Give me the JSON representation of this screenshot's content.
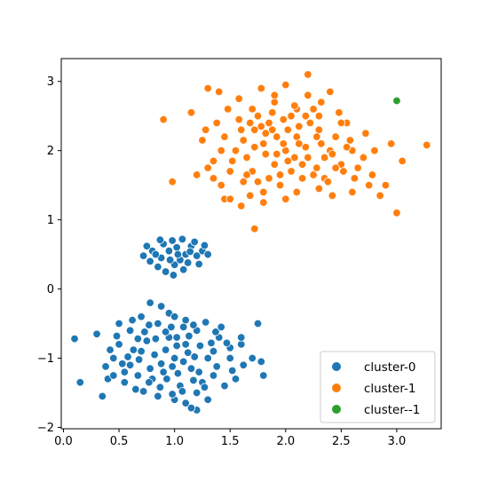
{
  "chart_data": {
    "type": "scatter",
    "title": "",
    "xlabel": "",
    "ylabel": "",
    "xlim": [
      -0.02,
      3.4
    ],
    "ylim": [
      -2.02,
      3.33
    ],
    "xticks": [
      0.0,
      0.5,
      1.0,
      1.5,
      2.0,
      2.5,
      3.0
    ],
    "xtick_labels": [
      "0.0",
      "0.5",
      "1.0",
      "1.5",
      "2.0",
      "2.5",
      "3.0"
    ],
    "yticks": [
      -2,
      -1,
      0,
      1,
      2,
      3
    ],
    "ytick_labels": [
      "−2",
      "−1",
      "0",
      "1",
      "2",
      "3"
    ],
    "grid": false,
    "legend": {
      "placement": "lower-right"
    },
    "series": [
      {
        "name": "cluster-0",
        "color": "#1f77b4",
        "points": [
          [
            0.95,
            0.55
          ],
          [
            1.02,
            0.6
          ],
          [
            1.1,
            0.5
          ],
          [
            0.88,
            0.45
          ],
          [
            1.15,
            0.62
          ],
          [
            0.8,
            0.55
          ],
          [
            1.2,
            0.48
          ],
          [
            1.0,
            0.35
          ],
          [
            0.9,
            0.65
          ],
          [
            1.05,
            0.42
          ],
          [
            1.25,
            0.55
          ],
          [
            0.78,
            0.4
          ],
          [
            1.12,
            0.38
          ],
          [
            0.98,
            0.7
          ],
          [
            1.18,
            0.68
          ],
          [
            0.85,
            0.32
          ],
          [
            1.08,
            0.28
          ],
          [
            0.92,
            0.25
          ],
          [
            1.22,
            0.36
          ],
          [
            0.75,
            0.62
          ],
          [
            1.3,
            0.5
          ],
          [
            1.03,
            0.5
          ],
          [
            0.96,
            0.42
          ],
          [
            1.14,
            0.54
          ],
          [
            0.83,
            0.5
          ],
          [
            0.99,
            0.2
          ],
          [
            1.07,
            0.72
          ],
          [
            0.87,
            0.71
          ],
          [
            1.27,
            0.63
          ],
          [
            0.72,
            0.48
          ],
          [
            0.85,
            -0.5
          ],
          [
            0.95,
            -0.7
          ],
          [
            1.1,
            -0.8
          ],
          [
            0.7,
            -0.9
          ],
          [
            1.2,
            -0.6
          ],
          [
            0.6,
            -1.1
          ],
          [
            1.3,
            -1.0
          ],
          [
            0.9,
            -1.2
          ],
          [
            1.0,
            -1.0
          ],
          [
            1.15,
            -1.15
          ],
          [
            0.75,
            -0.75
          ],
          [
            0.8,
            -1.3
          ],
          [
            1.05,
            -1.4
          ],
          [
            0.5,
            -0.8
          ],
          [
            1.4,
            -0.7
          ],
          [
            0.65,
            -1.45
          ],
          [
            1.25,
            -1.35
          ],
          [
            0.55,
            -1.2
          ],
          [
            1.35,
            -1.25
          ],
          [
            0.95,
            -0.35
          ],
          [
            1.1,
            -0.45
          ],
          [
            0.7,
            -0.4
          ],
          [
            1.5,
            -1.0
          ],
          [
            0.45,
            -1.0
          ],
          [
            1.0,
            -1.6
          ],
          [
            0.85,
            -1.55
          ],
          [
            1.2,
            -1.5
          ],
          [
            0.6,
            -0.6
          ],
          [
            1.45,
            -1.4
          ],
          [
            0.4,
            -1.3
          ],
          [
            0.1,
            -0.72
          ],
          [
            0.15,
            -1.35
          ],
          [
            0.3,
            -0.65
          ],
          [
            0.35,
            -1.55
          ],
          [
            0.5,
            -0.5
          ],
          [
            0.62,
            -0.45
          ],
          [
            0.78,
            -0.2
          ],
          [
            0.88,
            -0.25
          ],
          [
            1.0,
            -0.4
          ],
          [
            1.08,
            -0.55
          ],
          [
            1.28,
            -0.48
          ],
          [
            1.6,
            -0.8
          ],
          [
            1.75,
            -0.5
          ],
          [
            1.55,
            -1.3
          ],
          [
            1.2,
            -1.75
          ],
          [
            1.15,
            -1.72
          ],
          [
            1.1,
            -1.65
          ],
          [
            1.3,
            -1.6
          ],
          [
            0.98,
            -1.52
          ],
          [
            0.72,
            -1.48
          ],
          [
            0.55,
            -1.35
          ],
          [
            0.45,
            -1.25
          ],
          [
            1.78,
            -1.05
          ],
          [
            1.8,
            -1.25
          ],
          [
            1.7,
            -1.0
          ],
          [
            1.62,
            -1.1
          ],
          [
            1.6,
            -0.7
          ],
          [
            1.5,
            -0.85
          ],
          [
            1.42,
            -0.55
          ],
          [
            1.35,
            -0.9
          ],
          [
            0.82,
            -0.95
          ],
          [
            0.92,
            -0.88
          ],
          [
            1.02,
            -0.82
          ],
          [
            1.12,
            -0.92
          ],
          [
            0.88,
            -1.08
          ],
          [
            0.98,
            -1.12
          ],
          [
            1.08,
            -1.05
          ],
          [
            1.18,
            -0.98
          ],
          [
            0.78,
            -1.15
          ],
          [
            0.68,
            -1.02
          ],
          [
            1.22,
            -1.2
          ],
          [
            0.93,
            -1.3
          ],
          [
            1.03,
            -1.22
          ],
          [
            0.73,
            -0.62
          ],
          [
            0.83,
            -0.72
          ],
          [
            1.13,
            -0.68
          ],
          [
            1.23,
            -0.82
          ],
          [
            0.63,
            -0.88
          ],
          [
            0.58,
            -0.98
          ],
          [
            0.53,
            -1.08
          ],
          [
            1.33,
            -0.78
          ],
          [
            1.38,
            -1.12
          ],
          [
            1.27,
            -1.42
          ],
          [
            0.87,
            -1.42
          ],
          [
            0.77,
            -1.35
          ],
          [
            0.67,
            -1.25
          ],
          [
            1.17,
            -1.32
          ],
          [
            1.07,
            -1.48
          ],
          [
            0.97,
            -0.55
          ],
          [
            0.77,
            -0.52
          ],
          [
            0.67,
            -0.72
          ],
          [
            1.17,
            -0.52
          ],
          [
            1.37,
            -0.62
          ],
          [
            1.47,
            -0.78
          ],
          [
            1.52,
            -1.18
          ],
          [
            0.48,
            -0.68
          ],
          [
            0.42,
            -0.88
          ],
          [
            0.38,
            -1.12
          ],
          [
            0.92,
            -0.62
          ],
          [
            1.02,
            -0.7
          ]
        ]
      },
      {
        "name": "cluster-1",
        "color": "#ff7f0e",
        "points": [
          [
            2.0,
            2.0
          ],
          [
            2.1,
            2.2
          ],
          [
            1.9,
            1.8
          ],
          [
            2.2,
            1.9
          ],
          [
            1.8,
            2.1
          ],
          [
            2.3,
            2.3
          ],
          [
            1.7,
            1.7
          ],
          [
            2.4,
            2.0
          ],
          [
            1.6,
            2.3
          ],
          [
            2.5,
            1.8
          ],
          [
            2.05,
            2.5
          ],
          [
            1.95,
            1.5
          ],
          [
            2.15,
            1.6
          ],
          [
            1.85,
            2.4
          ],
          [
            2.25,
            2.6
          ],
          [
            1.75,
            2.5
          ],
          [
            2.35,
            1.6
          ],
          [
            1.65,
            1.9
          ],
          [
            2.45,
            2.2
          ],
          [
            1.55,
            2.0
          ],
          [
            2.55,
            2.4
          ],
          [
            2.6,
            2.0
          ],
          [
            1.5,
            1.7
          ],
          [
            2.0,
            1.3
          ],
          [
            2.1,
            1.4
          ],
          [
            1.9,
            2.7
          ],
          [
            2.2,
            2.8
          ],
          [
            1.8,
            1.4
          ],
          [
            2.3,
            1.45
          ],
          [
            1.7,
            2.6
          ],
          [
            0.9,
            2.45
          ],
          [
            0.98,
            1.55
          ],
          [
            1.15,
            2.55
          ],
          [
            1.25,
            2.15
          ],
          [
            1.3,
            2.9
          ],
          [
            1.4,
            2.85
          ],
          [
            1.42,
            1.5
          ],
          [
            1.45,
            1.3
          ],
          [
            1.5,
            1.3
          ],
          [
            1.6,
            1.2
          ],
          [
            1.72,
            0.87
          ],
          [
            1.8,
            1.25
          ],
          [
            1.9,
            2.8
          ],
          [
            2.0,
            2.95
          ],
          [
            2.1,
            2.6
          ],
          [
            2.2,
            3.1
          ],
          [
            2.3,
            2.5
          ],
          [
            2.4,
            2.85
          ],
          [
            2.5,
            2.4
          ],
          [
            2.6,
            1.4
          ],
          [
            2.7,
            1.9
          ],
          [
            2.75,
            1.5
          ],
          [
            2.8,
            2.0
          ],
          [
            2.85,
            1.35
          ],
          [
            2.9,
            1.5
          ],
          [
            2.95,
            2.1
          ],
          [
            3.0,
            1.1
          ],
          [
            3.05,
            1.85
          ],
          [
            3.27,
            2.08
          ],
          [
            1.2,
            1.65
          ],
          [
            1.35,
            1.85
          ],
          [
            1.38,
            2.4
          ],
          [
            1.48,
            2.6
          ],
          [
            1.58,
            2.75
          ],
          [
            1.62,
            1.55
          ],
          [
            1.68,
            1.35
          ],
          [
            1.78,
            2.9
          ],
          [
            1.88,
            2.3
          ],
          [
            1.98,
            2.1
          ],
          [
            2.08,
            1.9
          ],
          [
            2.18,
            2.05
          ],
          [
            2.28,
            1.75
          ],
          [
            2.38,
            1.55
          ],
          [
            2.48,
            2.55
          ],
          [
            2.58,
            2.15
          ],
          [
            2.65,
            1.75
          ],
          [
            2.72,
            2.25
          ],
          [
            2.78,
            1.65
          ],
          [
            2.42,
            1.35
          ],
          [
            2.32,
            2.7
          ],
          [
            1.92,
            1.95
          ],
          [
            2.02,
            1.85
          ],
          [
            2.12,
            2.1
          ],
          [
            1.82,
            1.95
          ],
          [
            1.72,
            2.05
          ],
          [
            1.62,
            2.15
          ],
          [
            1.52,
            1.85
          ],
          [
            1.42,
            2.0
          ],
          [
            2.22,
            2.4
          ],
          [
            2.12,
            2.35
          ],
          [
            2.02,
            2.3
          ],
          [
            1.92,
            2.2
          ],
          [
            1.82,
            2.25
          ],
          [
            1.72,
            2.3
          ],
          [
            2.32,
            2.1
          ],
          [
            2.42,
            1.95
          ],
          [
            2.52,
            1.7
          ],
          [
            2.62,
            1.6
          ],
          [
            2.05,
            1.7
          ],
          [
            1.95,
            1.65
          ],
          [
            1.85,
            1.6
          ],
          [
            1.75,
            1.55
          ],
          [
            1.65,
            1.65
          ],
          [
            2.15,
            1.8
          ],
          [
            2.25,
            1.65
          ],
          [
            2.35,
            1.9
          ],
          [
            2.45,
            1.75
          ],
          [
            2.55,
            2.05
          ],
          [
            1.58,
            2.45
          ],
          [
            1.68,
            2.4
          ],
          [
            1.78,
            2.35
          ],
          [
            1.88,
            2.55
          ],
          [
            1.98,
            2.45
          ],
          [
            2.08,
            2.65
          ],
          [
            2.18,
            2.5
          ],
          [
            2.28,
            2.2
          ],
          [
            1.45,
            2.2
          ],
          [
            1.35,
            1.6
          ],
          [
            1.3,
            1.75
          ],
          [
            1.28,
            2.3
          ]
        ]
      },
      {
        "name": "cluster--1",
        "color": "#2ca02c",
        "points": [
          [
            3.0,
            2.72
          ]
        ]
      }
    ]
  }
}
